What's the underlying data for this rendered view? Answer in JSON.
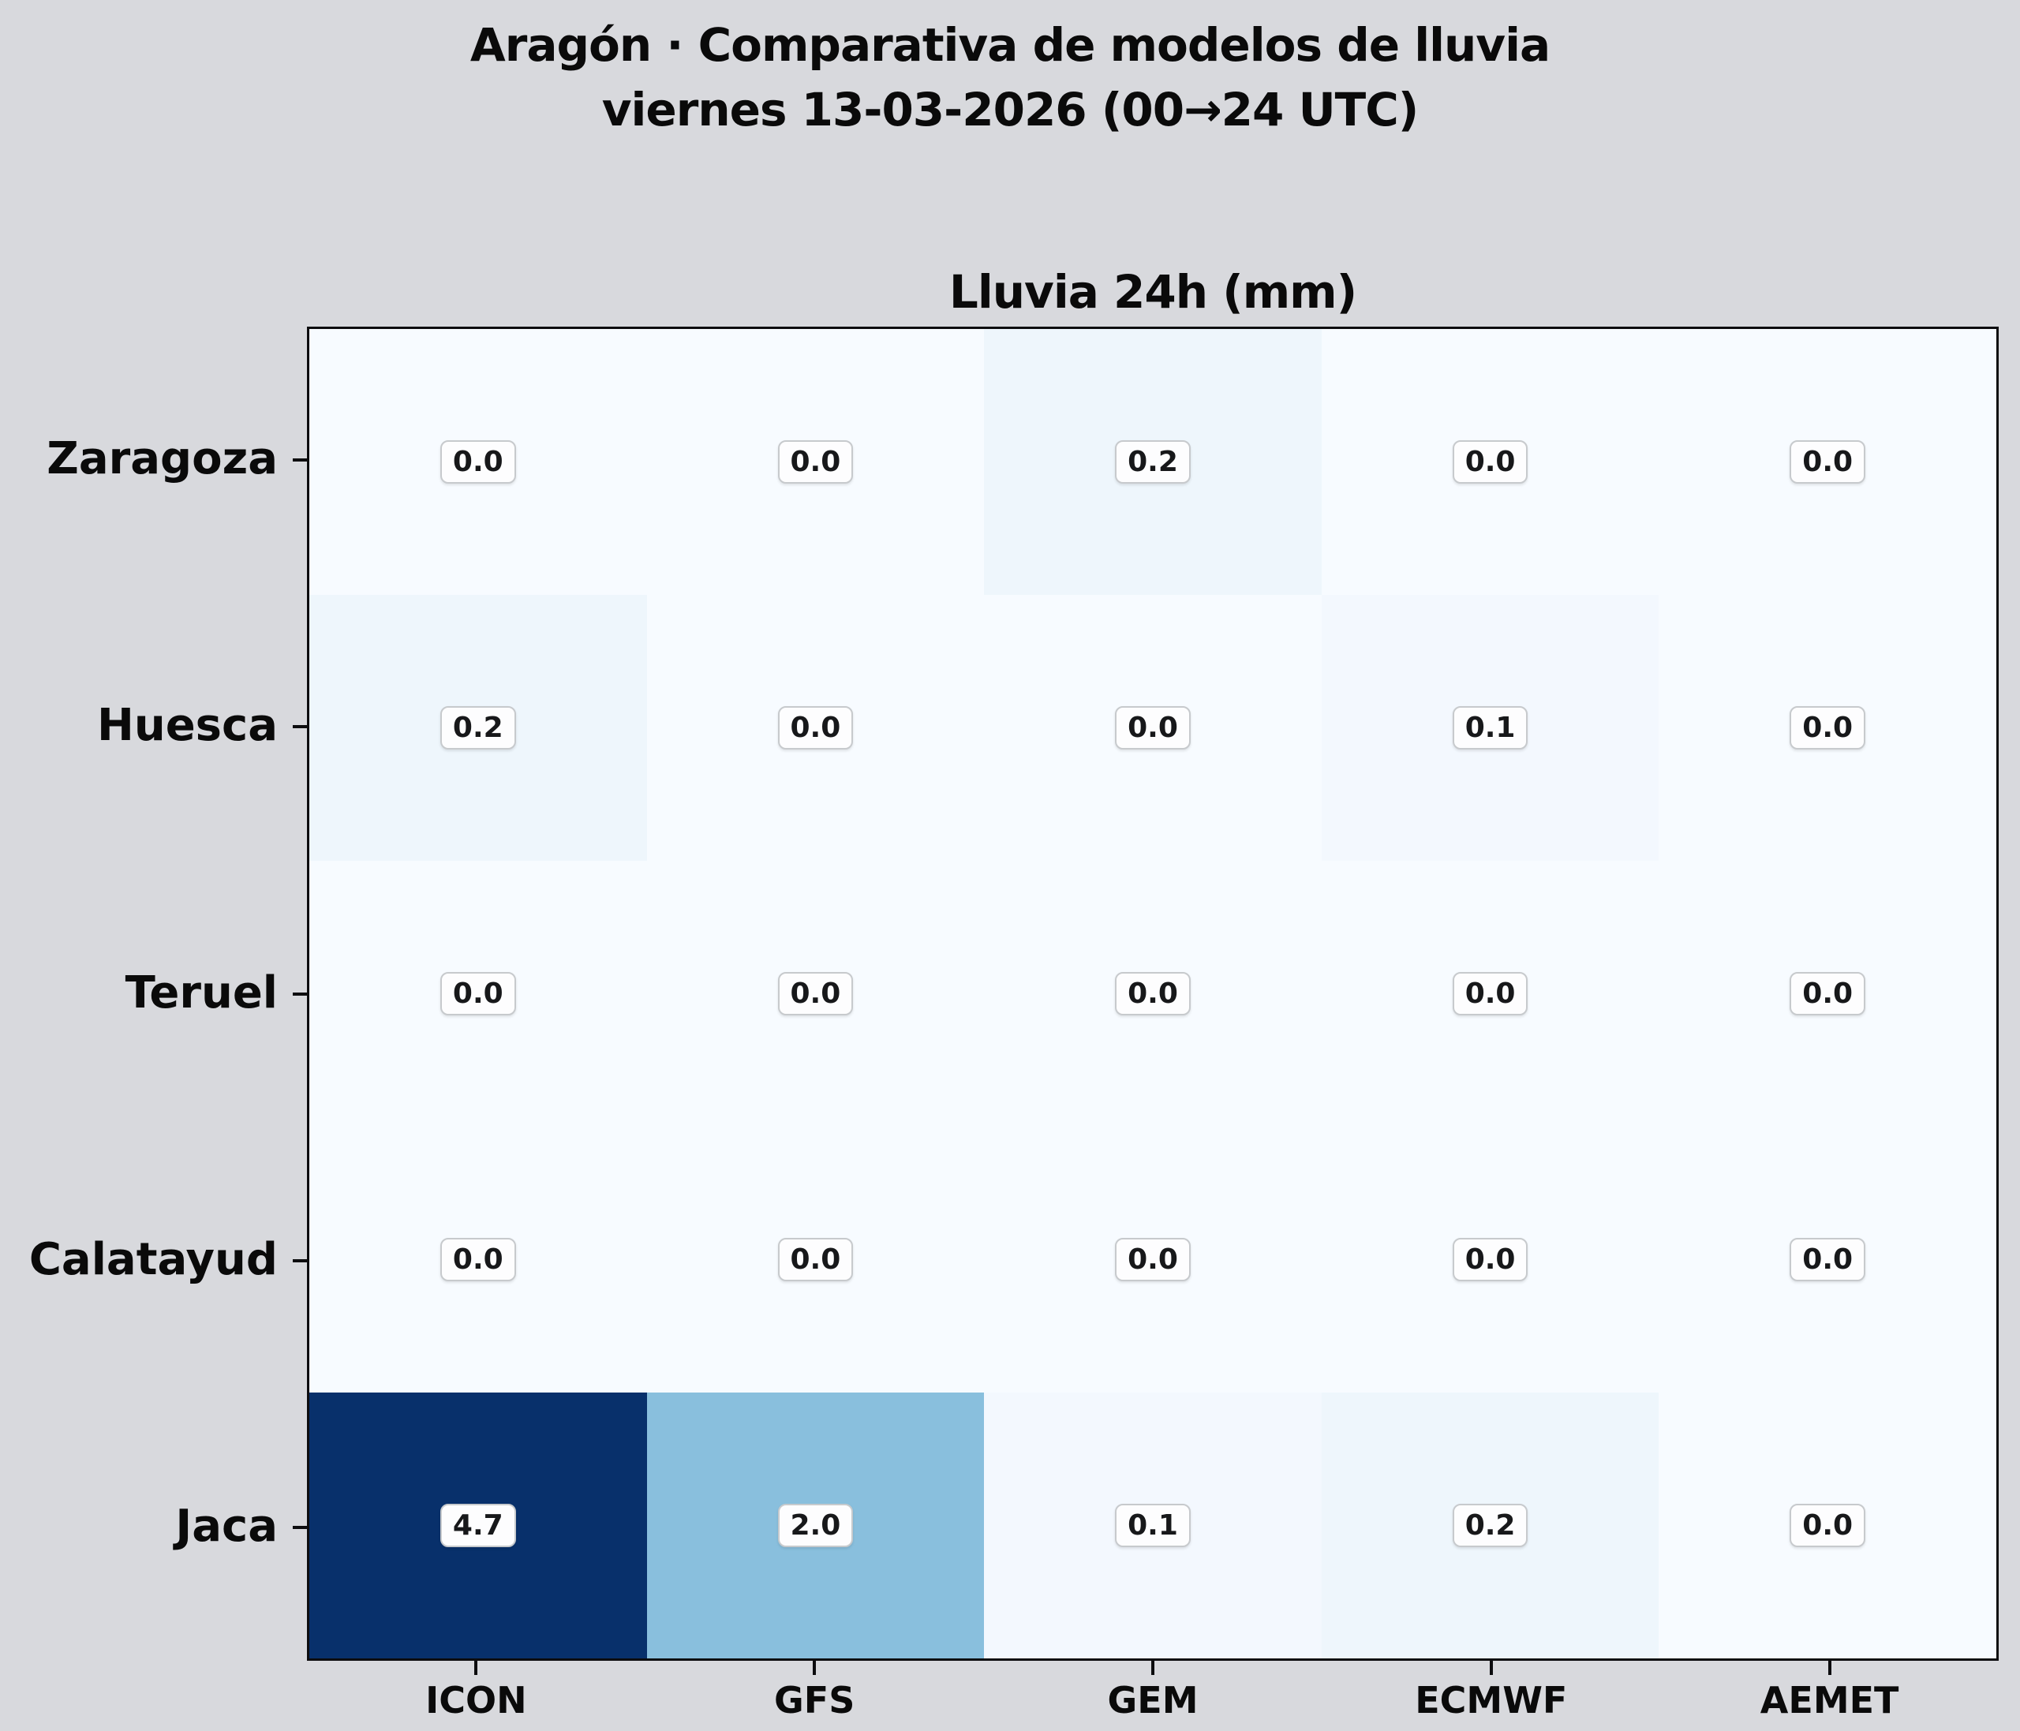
{
  "figure": {
    "suptitle_line1": "Aragón · Comparativa de modelos de lluvia",
    "suptitle_line2": "viernes 13-03-2026 (00→24 UTC)",
    "background_color": "#d8d9dd"
  },
  "chart_data": {
    "type": "heatmap",
    "title": "Lluvia 24h (mm)",
    "columns": [
      "ICON",
      "GFS",
      "GEM",
      "ECMWF",
      "AEMET"
    ],
    "rows": [
      "Zaragoza",
      "Huesca",
      "Teruel",
      "Calatayud",
      "Jaca"
    ],
    "values": [
      [
        0.0,
        0.0,
        0.2,
        0.0,
        0.0
      ],
      [
        0.2,
        0.0,
        0.0,
        0.1,
        0.0
      ],
      [
        0.0,
        0.0,
        0.0,
        0.0,
        0.0
      ],
      [
        0.0,
        0.0,
        0.0,
        0.0,
        0.0
      ],
      [
        4.7,
        2.0,
        0.1,
        0.2,
        0.0
      ]
    ],
    "value_unit": "mm",
    "vmin": 0,
    "vmax": 4.7,
    "colormap": "Blues",
    "grid": false,
    "legend": "none",
    "cell_label_decimals": 1,
    "colors": {
      "max_cell": "#0a3a7c",
      "mid_cell": "#8cc0dd",
      "min_cell": "#f7fbff",
      "chip_background": "#fdfdfe",
      "chip_border": "#c7cacd",
      "text": "#0a0a0a"
    }
  }
}
